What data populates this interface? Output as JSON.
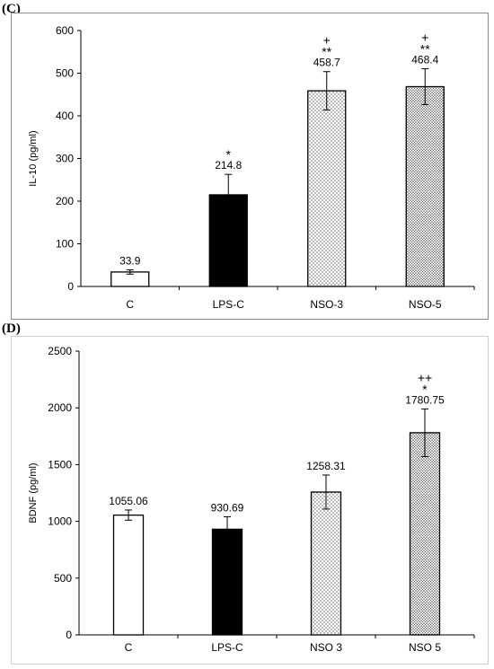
{
  "chart_data": [
    {
      "panel": "(C)",
      "type": "bar",
      "ylabel": "IL-10 (pg/ml)",
      "ylim": [
        0,
        600
      ],
      "yticks": [
        0,
        100,
        200,
        300,
        400,
        500,
        600
      ],
      "categories": [
        "C",
        "LPS-C",
        "NSO-3",
        "NSO-5"
      ],
      "values": [
        33.9,
        214.8,
        458.7,
        468.4
      ],
      "errors": [
        5,
        48,
        45,
        42
      ],
      "value_labels": [
        "33.9",
        "214.8",
        "458.7",
        "468.4"
      ],
      "significance": [
        [],
        [
          "*"
        ],
        [
          "+",
          "**"
        ],
        [
          "+",
          "**"
        ]
      ],
      "bar_styles": [
        "white",
        "black",
        "dotted-light",
        "dotted-dense"
      ],
      "grid": false
    },
    {
      "panel": "(D)",
      "type": "bar",
      "ylabel": "BDNF (pg/ml)",
      "ylim": [
        0,
        2500
      ],
      "yticks": [
        0,
        500,
        1000,
        1500,
        2000,
        2500
      ],
      "categories": [
        "C",
        "LPS-C",
        "NSO 3",
        "NSO 5"
      ],
      "values": [
        1055.06,
        930.69,
        1258.31,
        1780.75
      ],
      "errors": [
        45,
        110,
        150,
        210
      ],
      "value_labels": [
        "1055.06",
        "930.69",
        "1258.31",
        "1780.75"
      ],
      "significance": [
        [],
        [],
        [],
        [
          "++",
          "*"
        ]
      ],
      "bar_styles": [
        "white",
        "black",
        "dotted-light",
        "dotted-dense"
      ],
      "grid": false
    }
  ]
}
